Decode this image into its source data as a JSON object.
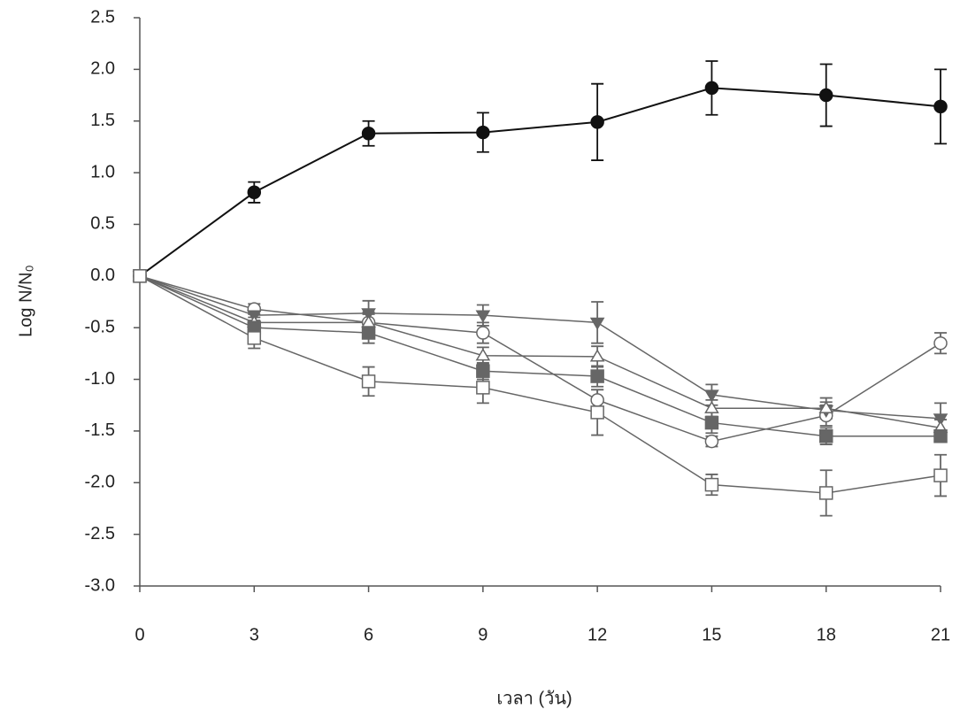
{
  "chart_data": {
    "type": "line",
    "x_label": "เวลา (วัน)",
    "y_label": "Log N/N₀",
    "x": [
      0,
      3,
      6,
      9,
      12,
      15,
      18,
      21
    ],
    "xlim": [
      0,
      21
    ],
    "xticks": [
      0,
      3,
      6,
      9,
      12,
      15,
      18,
      21
    ],
    "ylim": [
      -3,
      2.5
    ],
    "yticks": [
      2.5,
      {
        "value": 2,
        "label": "2.0"
      },
      1.5,
      {
        "value": 1,
        "label": "1.0"
      },
      0.5,
      {
        "value": 0,
        "label": "0.0"
      },
      -0.5,
      {
        "value": -1,
        "label": "-1.0"
      },
      -1.5,
      {
        "value": -2,
        "label": "-2.0"
      },
      -2.5,
      {
        "value": -3,
        "label": "-3.0"
      }
    ],
    "series": [
      {
        "color": "#111111",
        "marker": "circle",
        "filled": true,
        "values": [
          0,
          0.81,
          1.38,
          1.39,
          1.49,
          1.82,
          1.75,
          1.64
        ],
        "errors": [
          null,
          0.1,
          0.12,
          0.19,
          0.37,
          0.26,
          0.3,
          0.36
        ]
      },
      {
        "color": "#666666",
        "marker": "circle",
        "filled": false,
        "values": [
          0,
          -0.32,
          -0.45,
          -0.55,
          -1.2,
          -1.6,
          -1.35,
          -0.65
        ],
        "errors": [
          null,
          0.05,
          0.1,
          0.1,
          0.1,
          0.05,
          0.1,
          0.1
        ]
      },
      {
        "color": "#666666",
        "marker": "triangle-down",
        "filled": true,
        "values": [
          0,
          -0.38,
          -0.36,
          -0.38,
          -0.45,
          -1.15,
          -1.3,
          -1.38
        ],
        "errors": [
          null,
          0.05,
          0.12,
          0.1,
          0.2,
          0.1,
          0.08,
          0.15
        ]
      },
      {
        "color": "#666666",
        "marker": "triangle-up",
        "filled": false,
        "values": [
          0,
          -0.45,
          -0.45,
          -0.77,
          -0.78,
          -1.28,
          -1.28,
          -1.47
        ],
        "errors": [
          null,
          0.05,
          0.08,
          0.08,
          0.1,
          0.08,
          0.1,
          0.08
        ]
      },
      {
        "color": "#666666",
        "marker": "square",
        "filled": true,
        "values": [
          0,
          -0.5,
          -0.55,
          -0.92,
          -0.97,
          -1.42,
          -1.55,
          -1.55
        ],
        "errors": [
          null,
          0.05,
          0.1,
          0.08,
          0.1,
          0.1,
          0.08,
          0.05
        ]
      },
      {
        "color": "#666666",
        "marker": "square",
        "filled": false,
        "values": [
          0,
          -0.6,
          -1.02,
          -1.08,
          -1.32,
          -2.02,
          -2.1,
          -1.93
        ],
        "errors": [
          null,
          0.1,
          0.14,
          0.15,
          0.22,
          0.1,
          0.22,
          0.2
        ]
      }
    ]
  }
}
